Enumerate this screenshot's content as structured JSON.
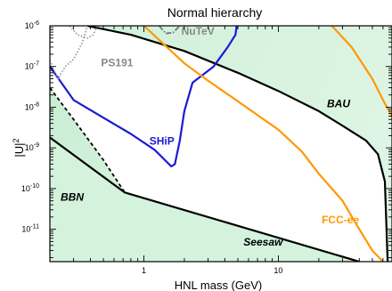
{
  "chart_data": {
    "type": "line",
    "title": "Normal hierarchy",
    "xlabel": "HNL mass (GeV)",
    "ylabel": "|U|",
    "ylabel_sup": "2",
    "xscale": "log",
    "yscale": "log",
    "xlim": [
      0.2,
      70
    ],
    "ylim": [
      1.6e-12,
      1e-06
    ],
    "x_ticks": [
      {
        "value": 1,
        "label": "1"
      },
      {
        "value": 10,
        "label": "10"
      }
    ],
    "y_ticks": [
      {
        "value": 1e-06,
        "base": "10",
        "exp": "-6"
      },
      {
        "value": 1e-07,
        "base": "10",
        "exp": "-7"
      },
      {
        "value": 1e-08,
        "base": "10",
        "exp": "-8"
      },
      {
        "value": 1e-09,
        "base": "10",
        "exp": "-9"
      },
      {
        "value": 1e-10,
        "base": "10",
        "exp": "-10"
      },
      {
        "value": 1e-11,
        "base": "10",
        "exp": "-11"
      }
    ],
    "grid": false,
    "region_colors": {
      "excluded": "#d4f2dc",
      "bbn": "#dcf3e2",
      "baryogenesis": "#ffffff"
    },
    "series": [
      {
        "name": "BAU",
        "color": "#000000",
        "style": "solid",
        "points": [
          [
            0.38,
            1e-06
          ],
          [
            0.8,
            6e-07
          ],
          [
            2,
            2.4e-07
          ],
          [
            5,
            7e-08
          ],
          [
            10,
            2.5e-08
          ],
          [
            20,
            8e-09
          ],
          [
            30,
            3.5e-09
          ],
          [
            45,
            1.5e-09
          ],
          [
            55,
            7e-10
          ],
          [
            62,
            1.5e-10
          ],
          [
            65,
            1.6e-12
          ]
        ]
      },
      {
        "name": "Seesaw",
        "color": "#000000",
        "style": "solid",
        "points": [
          [
            0.2,
            1.8e-09
          ],
          [
            0.72,
            8e-11
          ],
          [
            40,
            1.6e-12
          ]
        ]
      },
      {
        "name": "BBN",
        "color": "#000000",
        "style": "dashed",
        "points": [
          [
            0.2,
            3e-08
          ],
          [
            0.3,
            5e-09
          ],
          [
            0.5,
            5e-10
          ],
          [
            0.72,
            8e-11
          ]
        ]
      },
      {
        "name": "SHiP",
        "color": "#1a1ad6",
        "style": "solid",
        "points": [
          [
            0.2,
            1e-07
          ],
          [
            0.3,
            1.5e-08
          ],
          [
            0.5,
            5.5e-09
          ],
          [
            0.8,
            2.2e-09
          ],
          [
            1.2,
            9e-10
          ],
          [
            1.6,
            3.5e-10
          ],
          [
            1.7,
            4e-10
          ],
          [
            1.85,
            1.5e-09
          ],
          [
            2,
            8e-09
          ],
          [
            2.3,
            4e-08
          ],
          [
            2.7,
            6e-08
          ],
          [
            3.3,
            1e-07
          ],
          [
            4.2,
            3e-07
          ],
          [
            4.8,
            6e-07
          ],
          [
            4.9,
            1e-06
          ]
        ]
      },
      {
        "name": "FCC-ee",
        "color": "#ff9900",
        "style": "solid",
        "points": [
          [
            1,
            1e-06
          ],
          [
            1.3,
            4.5e-07
          ],
          [
            2,
            1.2e-07
          ],
          [
            3,
            4.5e-08
          ],
          [
            5,
            1.4e-08
          ],
          [
            10,
            2.8e-09
          ],
          [
            15,
            8e-10
          ],
          [
            20,
            2.3e-10
          ],
          [
            30,
            5e-11
          ],
          [
            40,
            1e-11
          ],
          [
            50,
            3e-12
          ],
          [
            60,
            1.6e-12
          ]
        ]
      },
      {
        "name": "FCC-ee",
        "color": "#ff9900",
        "style": "solid",
        "points": [
          [
            25,
            1e-06
          ],
          [
            35,
            3e-07
          ],
          [
            50,
            5e-08
          ],
          [
            60,
            1.5e-08
          ],
          [
            70,
            6e-09
          ]
        ]
      },
      {
        "name": "PS191",
        "color": "#999999",
        "style": "dotted",
        "points": [
          [
            0.2,
            1.4e-07
          ],
          [
            0.23,
            5e-08
          ],
          [
            0.26,
            1e-07
          ],
          [
            0.3,
            1.5e-07
          ],
          [
            0.35,
            4e-07
          ],
          [
            0.38,
            1e-06
          ]
        ]
      },
      {
        "name": "PS191",
        "color": "#999999",
        "style": "dotted",
        "points": [
          [
            0.28,
            1e-06
          ],
          [
            0.32,
            6e-07
          ],
          [
            0.38,
            5e-07
          ],
          [
            0.42,
            6e-07
          ],
          [
            0.45,
            1e-06
          ]
        ]
      },
      {
        "name": "NuTeV",
        "color": "#777777",
        "style": "dashdot",
        "points": [
          [
            1.3,
            1e-06
          ],
          [
            1.45,
            6.5e-07
          ],
          [
            1.65,
            6.8e-07
          ],
          [
            1.85,
            1e-06
          ]
        ]
      }
    ],
    "labels": [
      {
        "text": "NuTeV",
        "x": 1.9,
        "y": 6e-07,
        "color": "#888888"
      },
      {
        "text": "PS191",
        "x": 0.48,
        "y": 1e-07,
        "color": "#888888"
      },
      {
        "text": "BAU",
        "x": 23,
        "y": 1e-08,
        "color": "#000000",
        "italic": true
      },
      {
        "text": "SHiP",
        "x": 1.1,
        "y": 1.2e-09,
        "color": "#1a1ad6"
      },
      {
        "text": "BBN",
        "x": 0.24,
        "y": 5e-11,
        "color": "#000000",
        "italic": true
      },
      {
        "text": "FCC-ee",
        "x": 21,
        "y": 1.4e-11,
        "color": "#ff9900"
      },
      {
        "text": "Seesaw",
        "x": 5.5,
        "y": 4e-12,
        "color": "#000000",
        "italic": true
      }
    ]
  }
}
